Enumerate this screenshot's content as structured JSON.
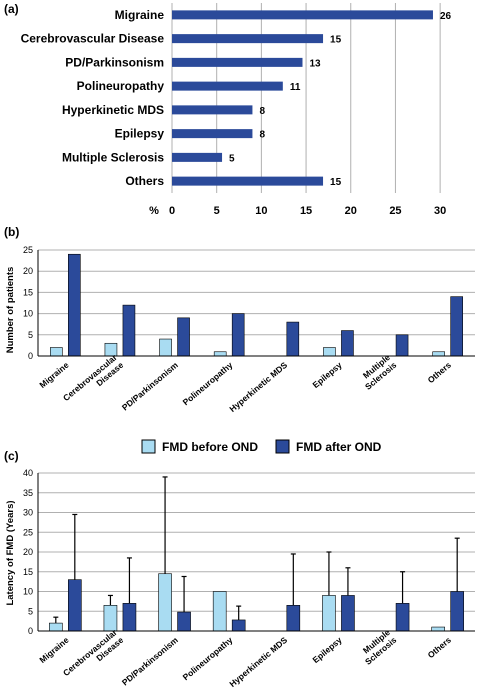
{
  "colors": {
    "dark": "#2b4a9a",
    "light": "#a9dcf2",
    "grid": "#b0b0b0",
    "axis": "#000000"
  },
  "chart_data": [
    {
      "panel": "(a)",
      "type": "bar",
      "orientation": "horizontal",
      "categories": [
        "Migraine",
        "Cerebrovascular Disease",
        "PD/Parkinsonism",
        "Polineuropathy",
        "Hyperkinetic MDS",
        "Epilepsy",
        "Multiple Sclerosis",
        "Others"
      ],
      "values": [
        29.2,
        16.9,
        14.6,
        12.4,
        9.0,
        9.0,
        5.6,
        16.9
      ],
      "data_labels": [
        "26",
        "15",
        "13",
        "11",
        "8",
        "8",
        "5",
        "15"
      ],
      "xlabel": "%",
      "xticks": [
        "0",
        "5",
        "10",
        "15",
        "20",
        "25",
        "30"
      ],
      "xlim": [
        0,
        32
      ],
      "grid": "vertical"
    },
    {
      "panel": "(b)",
      "type": "bar",
      "categories": [
        "Migraine",
        "Cerebrovascular Disease",
        "PD/Parkinsonism",
        "Polineuropathy",
        "Hyperkinetic MDS",
        "Epilepsy",
        "Multiple Sclerosis",
        "Others"
      ],
      "series": [
        {
          "values": [
            2,
            3,
            4,
            1,
            0,
            2,
            0,
            1
          ]
        },
        {
          "values": [
            24,
            12,
            9,
            10,
            8,
            6,
            5,
            14
          ]
        }
      ],
      "ylabel": "Number of patients",
      "yticks": [
        "0",
        "5",
        "10",
        "15",
        "20",
        "25"
      ],
      "ylim": [
        0,
        25
      ],
      "grid": "horizontal"
    },
    {
      "panel": "(c)",
      "type": "bar",
      "categories": [
        "Migraine",
        "Cerebrovascular Disease",
        "PD/Parkinsonism",
        "Polineuropathy",
        "Hyperkinetic MDS",
        "Epilepsy",
        "Multiple Sclerosis",
        "Others"
      ],
      "series": [
        {
          "name": "FMD before OND",
          "values": [
            2,
            6.5,
            14.5,
            10,
            0,
            9,
            0,
            1
          ],
          "errors": [
            1.5,
            2.5,
            24.5,
            0,
            0,
            11,
            0,
            0
          ]
        },
        {
          "name": "FMD after OND",
          "values": [
            13,
            7,
            4.8,
            2.8,
            6.5,
            9,
            7,
            10
          ],
          "errors": [
            16.5,
            11.5,
            9,
            3.5,
            13,
            7,
            8,
            13.5
          ]
        }
      ],
      "ylabel": "Latency of FMD (Years)",
      "yticks": [
        "0",
        "5",
        "10",
        "15",
        "20",
        "25",
        "30",
        "35",
        "40"
      ],
      "ylim": [
        0,
        40
      ],
      "grid": "horizontal",
      "legend_position": "top"
    }
  ],
  "rotated_labels": [
    [
      "Migraine"
    ],
    [
      "Cerebrovascular",
      "Disease"
    ],
    [
      "PD/Parkinsonism"
    ],
    [
      "Polineuropathy"
    ],
    [
      "Hyperkinetic MDS"
    ],
    [
      "Epilepsy"
    ],
    [
      "Multiple",
      "Sclerosis"
    ],
    [
      "Others"
    ]
  ]
}
